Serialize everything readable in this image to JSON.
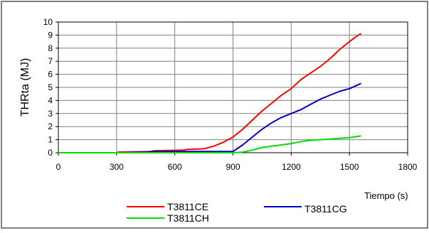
{
  "chart_data": {
    "type": "line",
    "title": "",
    "xlabel": "Tiempo (s)",
    "ylabel": "THRta (MJ)",
    "xlim": [
      0,
      1800
    ],
    "ylim": [
      0,
      10
    ],
    "xticks": [
      0,
      300,
      600,
      900,
      1200,
      1500,
      1800
    ],
    "yticks": [
      0,
      1,
      2,
      3,
      4,
      5,
      6,
      7,
      8,
      9,
      10
    ],
    "grid": true,
    "legend_position": "bottom",
    "series": [
      {
        "name": "T3811CE",
        "color": "#ff0000",
        "points": [
          [
            0,
            0
          ],
          [
            300,
            0
          ],
          [
            310,
            0.05
          ],
          [
            480,
            0.1
          ],
          [
            490,
            0.15
          ],
          [
            650,
            0.2
          ],
          [
            660,
            0.25
          ],
          [
            750,
            0.3
          ],
          [
            800,
            0.5
          ],
          [
            850,
            0.8
          ],
          [
            900,
            1.2
          ],
          [
            950,
            1.8
          ],
          [
            1000,
            2.5
          ],
          [
            1050,
            3.2
          ],
          [
            1100,
            3.8
          ],
          [
            1150,
            4.4
          ],
          [
            1200,
            4.9
          ],
          [
            1250,
            5.6
          ],
          [
            1300,
            6.1
          ],
          [
            1350,
            6.6
          ],
          [
            1400,
            7.2
          ],
          [
            1450,
            7.9
          ],
          [
            1500,
            8.5
          ],
          [
            1545,
            9.0
          ],
          [
            1560,
            9.1
          ]
        ]
      },
      {
        "name": "T3811CG",
        "color": "#0000cc",
        "points": [
          [
            0,
            0
          ],
          [
            300,
            0
          ],
          [
            450,
            0.05
          ],
          [
            480,
            0.1
          ],
          [
            900,
            0.1
          ],
          [
            920,
            0.3
          ],
          [
            950,
            0.6
          ],
          [
            1000,
            1.2
          ],
          [
            1050,
            1.8
          ],
          [
            1100,
            2.3
          ],
          [
            1150,
            2.7
          ],
          [
            1200,
            3.0
          ],
          [
            1250,
            3.3
          ],
          [
            1300,
            3.7
          ],
          [
            1350,
            4.1
          ],
          [
            1400,
            4.4
          ],
          [
            1450,
            4.7
          ],
          [
            1500,
            4.9
          ],
          [
            1545,
            5.2
          ],
          [
            1560,
            5.3
          ]
        ]
      },
      {
        "name": "T3811CH",
        "color": "#00dd00",
        "points": [
          [
            0,
            0
          ],
          [
            900,
            0
          ],
          [
            950,
            0.05
          ],
          [
            1000,
            0.2
          ],
          [
            1050,
            0.4
          ],
          [
            1100,
            0.5
          ],
          [
            1150,
            0.6
          ],
          [
            1200,
            0.7
          ],
          [
            1250,
            0.85
          ],
          [
            1300,
            0.95
          ],
          [
            1350,
            1.0
          ],
          [
            1400,
            1.05
          ],
          [
            1450,
            1.1
          ],
          [
            1500,
            1.15
          ],
          [
            1545,
            1.25
          ],
          [
            1560,
            1.3
          ]
        ]
      }
    ]
  }
}
